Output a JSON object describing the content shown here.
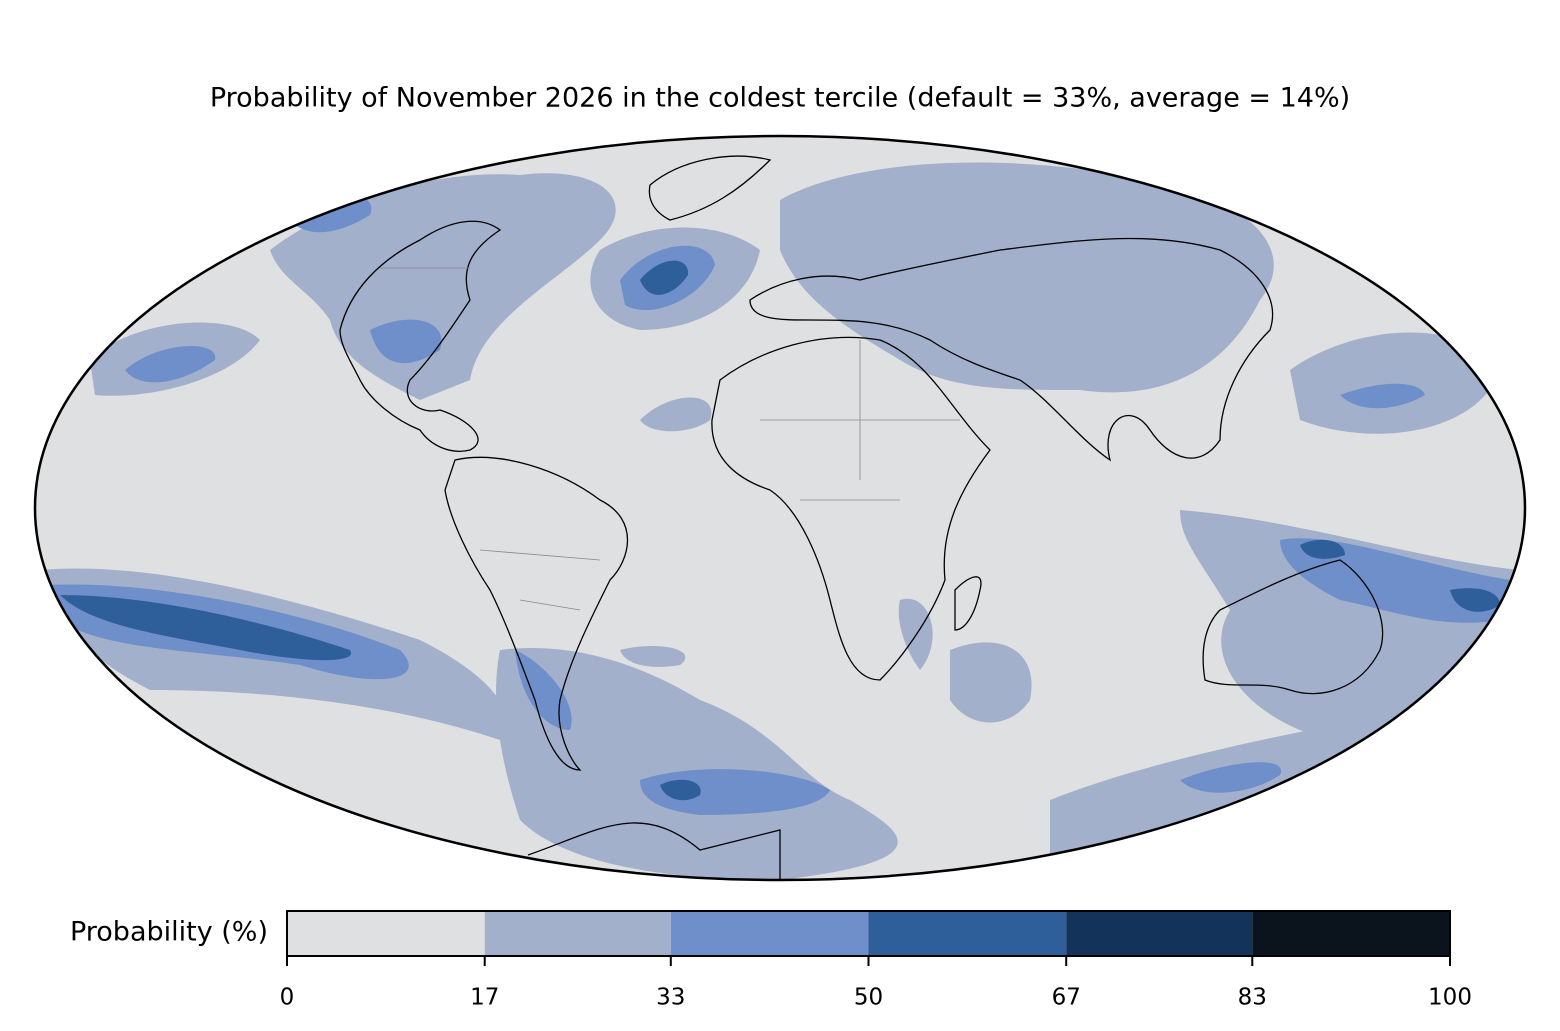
{
  "title": "Probability of November 2026 in the coldest tercile (default = 33%, average = 14%)",
  "colorbar": {
    "label": "Probability (%)",
    "range": [
      0,
      100
    ],
    "ticks": [
      0,
      17,
      33,
      50,
      67,
      83,
      100
    ],
    "colors": [
      "#dfe0e2",
      "#a2b0cb",
      "#6e8fca",
      "#2f5f9b",
      "#14335a",
      "#0b141d"
    ]
  }
}
